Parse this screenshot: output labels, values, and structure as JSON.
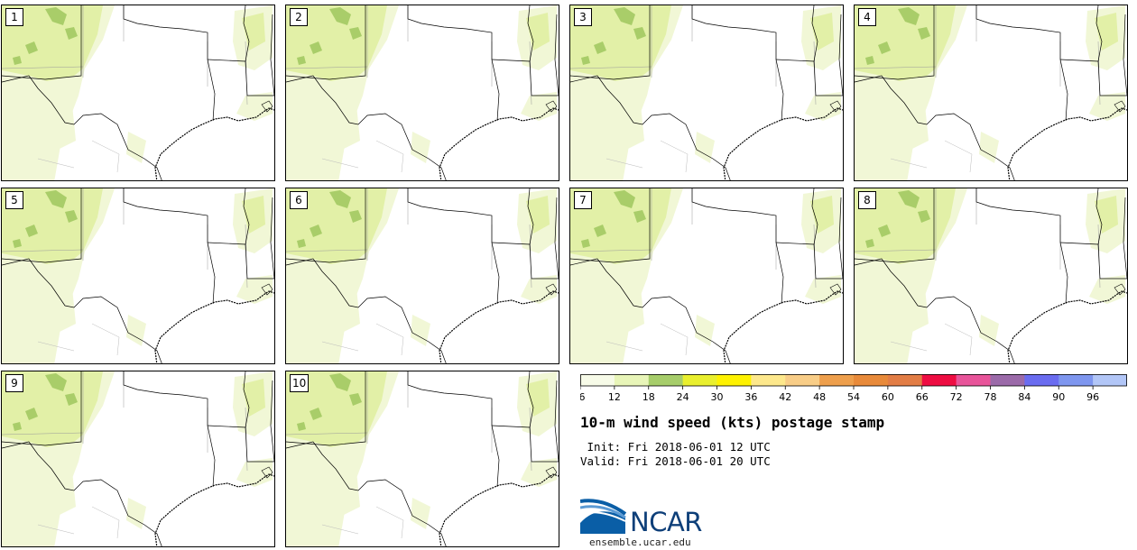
{
  "panels": [
    {
      "label": "1"
    },
    {
      "label": "2"
    },
    {
      "label": "3"
    },
    {
      "label": "4"
    },
    {
      "label": "5"
    },
    {
      "label": "6"
    },
    {
      "label": "7"
    },
    {
      "label": "8"
    },
    {
      "label": "9"
    },
    {
      "label": "10"
    }
  ],
  "colorbar": {
    "ticks": [
      "6",
      "12",
      "18",
      "24",
      "30",
      "36",
      "42",
      "48",
      "54",
      "60",
      "66",
      "72",
      "78",
      "84",
      "90",
      "96"
    ],
    "colors": [
      "#f7fbe8",
      "#e8f5b8",
      "#a6cd6a",
      "#e9ef2e",
      "#fef200",
      "#fde88c",
      "#f8cd87",
      "#ee9f4c",
      "#e88a3a",
      "#e27d45",
      "#ee0d42",
      "#e8549a",
      "#9b6aa9",
      "#6a6cf0",
      "#7e96ef",
      "#b2c6f7"
    ]
  },
  "map_colors": {
    "light": "#f1f7d6",
    "mid": "#e2f0a7",
    "dark": "#a9cd69",
    "border": "#000000",
    "county": "#9a9a9a"
  },
  "title": "10-m wind speed (kts) postage stamp",
  "init_line": " Init: Fri 2018-06-01 12 UTC",
  "valid_line": "Valid: Fri 2018-06-01 20 UTC",
  "logo": {
    "text": "NCAR",
    "url": "ensemble.ucar.edu"
  }
}
